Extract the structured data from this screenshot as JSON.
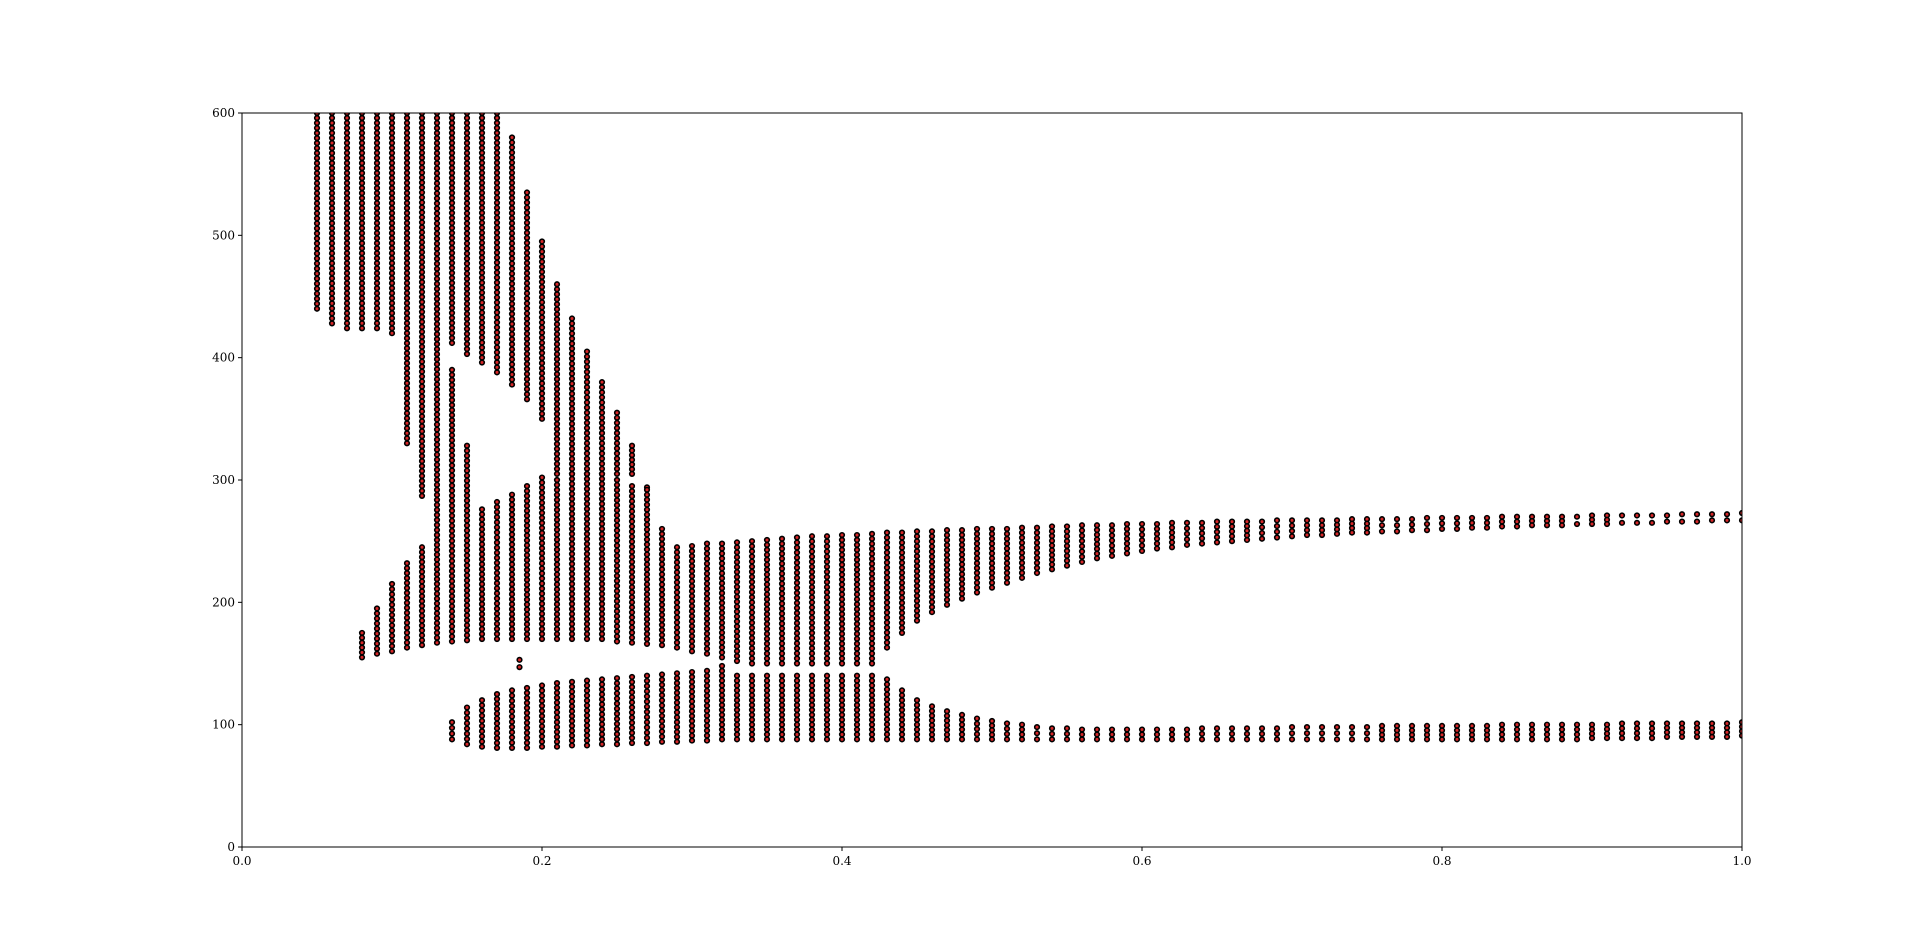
{
  "chart_data": {
    "type": "scatter",
    "title": "",
    "xlabel": "",
    "ylabel": "",
    "xlim": [
      0.0,
      1.0
    ],
    "ylim": [
      0,
      600
    ],
    "xticks": [
      0.0,
      0.2,
      0.4,
      0.6,
      0.8,
      1.0
    ],
    "xtick_labels": [
      "0.0",
      "0.2",
      "0.4",
      "0.6",
      "0.8",
      "1.0"
    ],
    "yticks": [
      0,
      100,
      200,
      300,
      400,
      500,
      600
    ],
    "ytick_labels": [
      "0",
      "100",
      "200",
      "300",
      "400",
      "500",
      "600"
    ],
    "grid": false,
    "legend": "none",
    "marker_face_color": "#d62728",
    "marker_edge_color": "#000000",
    "x_step": 0.01,
    "x_first": 0.05,
    "x_last": 1.0,
    "series": [
      {
        "ranges": [
          [
            0.05,
            440,
            600
          ],
          [
            0.06,
            428,
            600
          ],
          [
            0.07,
            424,
            600
          ],
          [
            0.08,
            424,
            600
          ],
          [
            0.09,
            424,
            600
          ],
          [
            0.1,
            420,
            600
          ],
          [
            0.11,
            330,
            600
          ],
          [
            0.12,
            287,
            600
          ],
          [
            0.13,
            255,
            600
          ],
          [
            0.14,
            412,
            600
          ],
          [
            0.15,
            403,
            600
          ],
          [
            0.16,
            396,
            600
          ],
          [
            0.17,
            388,
            600
          ],
          [
            0.18,
            378,
            580
          ],
          [
            0.19,
            366,
            535
          ],
          [
            0.2,
            350,
            495
          ],
          [
            0.21,
            305,
            460
          ],
          [
            0.22,
            305,
            432
          ],
          [
            0.23,
            305,
            405
          ],
          [
            0.24,
            305,
            380
          ],
          [
            0.25,
            305,
            355
          ],
          [
            0.26,
            305,
            328
          ],
          [
            0.27,
            305,
            294
          ]
        ]
      },
      {
        "ranges": [
          [
            0.08,
            155,
            175
          ],
          [
            0.09,
            158,
            195
          ],
          [
            0.1,
            160,
            215
          ],
          [
            0.11,
            163,
            232
          ],
          [
            0.12,
            165,
            245
          ],
          [
            0.13,
            167,
            255
          ],
          [
            0.14,
            168,
            390
          ],
          [
            0.15,
            169,
            328
          ],
          [
            0.16,
            170,
            276
          ],
          [
            0.17,
            170,
            282
          ],
          [
            0.18,
            170,
            288
          ],
          [
            0.19,
            170,
            295
          ],
          [
            0.2,
            170,
            302
          ],
          [
            0.21,
            170,
            300
          ],
          [
            0.22,
            170,
            305
          ],
          [
            0.23,
            170,
            305
          ],
          [
            0.24,
            170,
            305
          ],
          [
            0.25,
            168,
            300
          ],
          [
            0.26,
            167,
            295
          ],
          [
            0.27,
            166,
            292
          ],
          [
            0.28,
            165,
            260
          ],
          [
            0.29,
            163,
            245
          ],
          [
            0.3,
            160,
            246
          ],
          [
            0.31,
            158,
            248
          ],
          [
            0.32,
            155,
            248
          ],
          [
            0.33,
            152,
            249
          ],
          [
            0.34,
            150,
            250
          ],
          [
            0.35,
            150,
            251
          ],
          [
            0.36,
            150,
            252
          ],
          [
            0.37,
            150,
            253
          ],
          [
            0.38,
            150,
            254
          ],
          [
            0.39,
            150,
            254
          ],
          [
            0.4,
            150,
            255
          ],
          [
            0.41,
            150,
            255
          ],
          [
            0.42,
            150,
            256
          ],
          [
            0.43,
            163,
            257
          ],
          [
            0.44,
            175,
            257
          ],
          [
            0.45,
            185,
            258
          ],
          [
            0.46,
            192,
            258
          ],
          [
            0.47,
            198,
            259
          ],
          [
            0.48,
            203,
            259
          ],
          [
            0.49,
            208,
            260
          ],
          [
            0.5,
            212,
            260
          ],
          [
            0.51,
            216,
            260
          ],
          [
            0.52,
            220,
            261
          ],
          [
            0.53,
            224,
            261
          ],
          [
            0.54,
            227,
            262
          ],
          [
            0.55,
            230,
            262
          ],
          [
            0.56,
            233,
            263
          ],
          [
            0.57,
            236,
            263
          ],
          [
            0.58,
            238,
            263
          ],
          [
            0.59,
            240,
            264
          ],
          [
            0.6,
            242,
            264
          ],
          [
            0.61,
            244,
            264
          ],
          [
            0.62,
            245,
            265
          ],
          [
            0.63,
            247,
            265
          ],
          [
            0.64,
            248,
            265
          ],
          [
            0.65,
            249,
            266
          ],
          [
            0.66,
            250,
            266
          ],
          [
            0.67,
            251,
            266
          ],
          [
            0.68,
            252,
            266
          ],
          [
            0.69,
            253,
            267
          ],
          [
            0.7,
            254,
            267
          ],
          [
            0.71,
            255,
            267
          ],
          [
            0.72,
            255,
            267
          ],
          [
            0.73,
            256,
            267
          ],
          [
            0.74,
            257,
            268
          ],
          [
            0.75,
            257,
            268
          ],
          [
            0.76,
            258,
            268
          ],
          [
            0.77,
            258,
            268
          ],
          [
            0.78,
            259,
            268
          ],
          [
            0.79,
            259,
            269
          ],
          [
            0.8,
            260,
            269
          ],
          [
            0.81,
            260,
            269
          ],
          [
            0.82,
            261,
            269
          ],
          [
            0.83,
            261,
            269
          ],
          [
            0.84,
            262,
            270
          ],
          [
            0.85,
            262,
            270
          ],
          [
            0.86,
            263,
            270
          ],
          [
            0.87,
            263,
            270
          ],
          [
            0.88,
            263,
            270
          ],
          [
            0.89,
            264,
            270
          ],
          [
            0.9,
            264,
            271
          ],
          [
            0.91,
            264,
            271
          ],
          [
            0.92,
            265,
            271
          ],
          [
            0.93,
            265,
            271
          ],
          [
            0.94,
            265,
            271
          ],
          [
            0.95,
            266,
            271
          ],
          [
            0.96,
            266,
            272
          ],
          [
            0.97,
            266,
            272
          ],
          [
            0.98,
            267,
            272
          ],
          [
            0.99,
            267,
            272
          ],
          [
            1.0,
            267,
            273
          ]
        ]
      },
      {
        "ranges": [
          [
            0.14,
            88,
            102
          ],
          [
            0.15,
            84,
            114
          ],
          [
            0.16,
            82,
            120
          ],
          [
            0.17,
            81,
            125
          ],
          [
            0.18,
            81,
            128
          ],
          [
            0.19,
            81,
            130
          ],
          [
            0.2,
            82,
            132
          ],
          [
            0.21,
            82,
            134
          ],
          [
            0.22,
            83,
            135
          ],
          [
            0.23,
            83,
            136
          ],
          [
            0.24,
            84,
            137
          ],
          [
            0.25,
            84,
            138
          ],
          [
            0.26,
            85,
            139
          ],
          [
            0.27,
            85,
            140
          ],
          [
            0.28,
            86,
            141
          ],
          [
            0.29,
            86,
            142
          ],
          [
            0.3,
            87,
            143
          ],
          [
            0.31,
            87,
            144
          ],
          [
            0.32,
            88,
            148
          ],
          [
            0.33,
            88,
            140
          ],
          [
            0.34,
            88,
            140
          ],
          [
            0.35,
            88,
            140
          ],
          [
            0.36,
            88,
            140
          ],
          [
            0.37,
            88,
            140
          ],
          [
            0.38,
            88,
            140
          ],
          [
            0.39,
            88,
            140
          ],
          [
            0.4,
            88,
            140
          ],
          [
            0.41,
            88,
            140
          ],
          [
            0.42,
            88,
            140
          ],
          [
            0.43,
            88,
            137
          ],
          [
            0.44,
            88,
            128
          ],
          [
            0.45,
            88,
            120
          ],
          [
            0.46,
            88,
            115
          ],
          [
            0.47,
            88,
            111
          ],
          [
            0.48,
            88,
            108
          ],
          [
            0.49,
            88,
            105
          ],
          [
            0.5,
            88,
            103
          ],
          [
            0.51,
            88,
            101
          ],
          [
            0.52,
            88,
            100
          ],
          [
            0.53,
            88,
            98
          ],
          [
            0.54,
            88,
            97
          ],
          [
            0.55,
            88,
            97
          ],
          [
            0.56,
            88,
            96
          ],
          [
            0.57,
            88,
            96
          ],
          [
            0.58,
            88,
            96
          ],
          [
            0.59,
            88,
            96
          ],
          [
            0.6,
            88,
            96
          ],
          [
            0.61,
            88,
            96
          ],
          [
            0.62,
            88,
            96
          ],
          [
            0.63,
            88,
            96
          ],
          [
            0.64,
            88,
            97
          ],
          [
            0.65,
            88,
            97
          ],
          [
            0.66,
            88,
            97
          ],
          [
            0.67,
            88,
            97
          ],
          [
            0.68,
            88,
            97
          ],
          [
            0.69,
            88,
            97
          ],
          [
            0.7,
            88,
            98
          ],
          [
            0.71,
            88,
            98
          ],
          [
            0.72,
            88,
            98
          ],
          [
            0.73,
            88,
            98
          ],
          [
            0.74,
            88,
            98
          ],
          [
            0.75,
            88,
            98
          ],
          [
            0.76,
            88,
            99
          ],
          [
            0.77,
            88,
            99
          ],
          [
            0.78,
            88,
            99
          ],
          [
            0.79,
            88,
            99
          ],
          [
            0.8,
            88,
            99
          ],
          [
            0.81,
            88,
            99
          ],
          [
            0.82,
            88,
            99
          ],
          [
            0.83,
            88,
            99
          ],
          [
            0.84,
            88,
            100
          ],
          [
            0.85,
            88,
            100
          ],
          [
            0.86,
            88,
            100
          ],
          [
            0.87,
            88,
            100
          ],
          [
            0.88,
            88,
            100
          ],
          [
            0.89,
            88,
            100
          ],
          [
            0.9,
            89,
            100
          ],
          [
            0.91,
            89,
            100
          ],
          [
            0.92,
            89,
            101
          ],
          [
            0.93,
            89,
            101
          ],
          [
            0.94,
            89,
            101
          ],
          [
            0.95,
            90,
            101
          ],
          [
            0.96,
            90,
            101
          ],
          [
            0.97,
            90,
            101
          ],
          [
            0.98,
            90,
            101
          ],
          [
            0.99,
            90,
            101
          ],
          [
            1.0,
            91,
            102
          ]
        ]
      },
      {
        "ranges": [
          [
            0.185,
            147,
            153
          ]
        ]
      }
    ]
  }
}
